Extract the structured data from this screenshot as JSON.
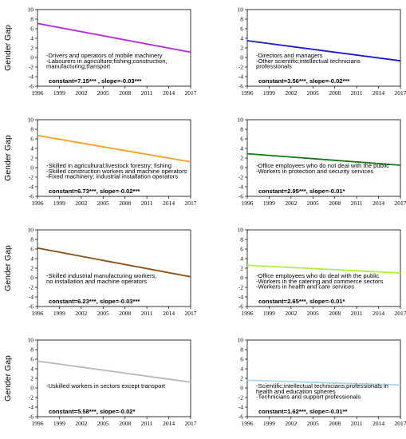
{
  "chart_data": [
    {
      "type": "line",
      "ylabel": "Gender Gap",
      "x": [
        1996,
        2017
      ],
      "xticks": [
        "1996",
        "1999",
        "2002",
        "2005",
        "2008",
        "2011",
        "2014",
        "2017"
      ],
      "ylim": [
        -6,
        10
      ],
      "yticks": [
        "-6",
        "-4",
        "-2",
        "0",
        "2",
        "4",
        "6",
        "8",
        "10"
      ],
      "series": [
        {
          "color": "#b428d8",
          "values": [
            7.1,
            1.1
          ]
        }
      ],
      "annotations": [
        "-Drivers and operators of mobile machinery",
        "-Labourers in agriculture;fishing;construction,",
        "manufacturing;transport"
      ],
      "stats": "constant=7.15*** , slope=-0.03***"
    },
    {
      "type": "line",
      "ylabel": "",
      "x": [
        1996,
        2017
      ],
      "xticks": [
        "1996",
        "1999",
        "2002",
        "2005",
        "2008",
        "2011",
        "2014",
        "2017"
      ],
      "ylim": [
        -6,
        10
      ],
      "yticks": [
        "-6",
        "-4",
        "-2",
        "0",
        "2",
        "4",
        "6",
        "8",
        "10"
      ],
      "series": [
        {
          "color": "#1a1ad0",
          "values": [
            3.5,
            -0.7
          ]
        }
      ],
      "annotations": [
        "-Directors and managers",
        "-Other scientific;intellectual technicians",
        "professionals"
      ],
      "stats": "constant=3.56***, slope=-0.02***"
    },
    {
      "type": "line",
      "ylabel": "Gender Gap",
      "x": [
        1996,
        2017
      ],
      "xticks": [
        "1996",
        "1999",
        "2002",
        "2005",
        "2008",
        "2011",
        "2014",
        "2017"
      ],
      "ylim": [
        -6,
        10
      ],
      "yticks": [
        "-6",
        "-4",
        "-2",
        "0",
        "2",
        "4",
        "6",
        "8",
        "10"
      ],
      "series": [
        {
          "color": "#f5a01e",
          "values": [
            6.7,
            1.2
          ]
        }
      ],
      "annotations": [
        "-Skilled in agricultural;livestock forestry; fishing",
        "-Skilled construction workers and machine operators",
        "-Fixed machinery; industrial installation operators"
      ],
      "stats": "constant=6.73***, slope=-0.02***"
    },
    {
      "type": "line",
      "ylabel": "",
      "x": [
        1996,
        2017
      ],
      "xticks": [
        "1996",
        "1999",
        "2002",
        "2005",
        "2008",
        "2011",
        "2014",
        "2017"
      ],
      "ylim": [
        -6,
        10
      ],
      "yticks": [
        "-6",
        "-4",
        "-2",
        "0",
        "2",
        "4",
        "6",
        "8",
        "10"
      ],
      "series": [
        {
          "color": "#0f7a0f",
          "values": [
            2.9,
            0.5
          ]
        }
      ],
      "annotations": [
        "-Office employees who do not deal with the public",
        "-Workers in protection and security services"
      ],
      "stats": "constant=2.95***, slope=-0.01*"
    },
    {
      "type": "line",
      "ylabel": "Gender Gap",
      "x": [
        1996,
        2017
      ],
      "xticks": [
        "1996",
        "1999",
        "2002",
        "2005",
        "2008",
        "2011",
        "2014",
        "2017"
      ],
      "ylim": [
        -6,
        10
      ],
      "yticks": [
        "-6",
        "-4",
        "-2",
        "0",
        "2",
        "4",
        "6",
        "8",
        "10"
      ],
      "series": [
        {
          "color": "#8a4c0f",
          "values": [
            6.2,
            0.2
          ]
        }
      ],
      "annotations": [
        "-Skilled industrial manufacturing workers,",
        "no installation and machine operators"
      ],
      "stats": "constant=6.23***, slope=-0.03***"
    },
    {
      "type": "line",
      "ylabel": "",
      "x": [
        1996,
        2017
      ],
      "xticks": [
        "1996",
        "1999",
        "2002",
        "2005",
        "2008",
        "2011",
        "2014",
        "2017"
      ],
      "ylim": [
        -6,
        10
      ],
      "yticks": [
        "-6",
        "-4",
        "-2",
        "0",
        "2",
        "4",
        "6",
        "8",
        "10"
      ],
      "series": [
        {
          "color": "#aef03c",
          "values": [
            2.6,
            1.0
          ]
        }
      ],
      "annotations": [
        "-Office employees who do deal with the public",
        "-Workers in the catering and commerce sectors",
        "-Workers in health and care services"
      ],
      "stats": "constant=2.65***, slope=-0.01*"
    },
    {
      "type": "line",
      "ylabel": "Gender Gap",
      "x": [
        1996,
        2017
      ],
      "xticks": [
        "1996",
        "1999",
        "2002",
        "2005",
        "2008",
        "2011",
        "2014",
        "2017"
      ],
      "ylim": [
        -6,
        10
      ],
      "yticks": [
        "-6",
        "-4",
        "-2",
        "0",
        "2",
        "4",
        "6",
        "8",
        "10"
      ],
      "series": [
        {
          "color": "#b8b8b8",
          "values": [
            5.6,
            1.2
          ]
        }
      ],
      "annotations": [
        "-Uskilled workers in sectors except transport"
      ],
      "stats": "constant=5.58***, slope=-0.02*"
    },
    {
      "type": "line",
      "ylabel": "",
      "x": [
        1996,
        2017
      ],
      "xticks": [
        "1996",
        "1999",
        "2002",
        "2005",
        "2008",
        "2011",
        "2014",
        "2017"
      ],
      "ylim": [
        -6,
        10
      ],
      "yticks": [
        "-6",
        "-4",
        "-2",
        "0",
        "2",
        "4",
        "6",
        "8",
        "10"
      ],
      "series": [
        {
          "color": "#a8d8ea",
          "values": [
            1.6,
            0.6
          ]
        }
      ],
      "annotations": [
        "-Scientific;intellectual technicians;professionals in",
        "health and education spheres",
        "-Technicians and support professionals"
      ],
      "stats": "constant=1.62***, slope=-0.01**"
    }
  ]
}
